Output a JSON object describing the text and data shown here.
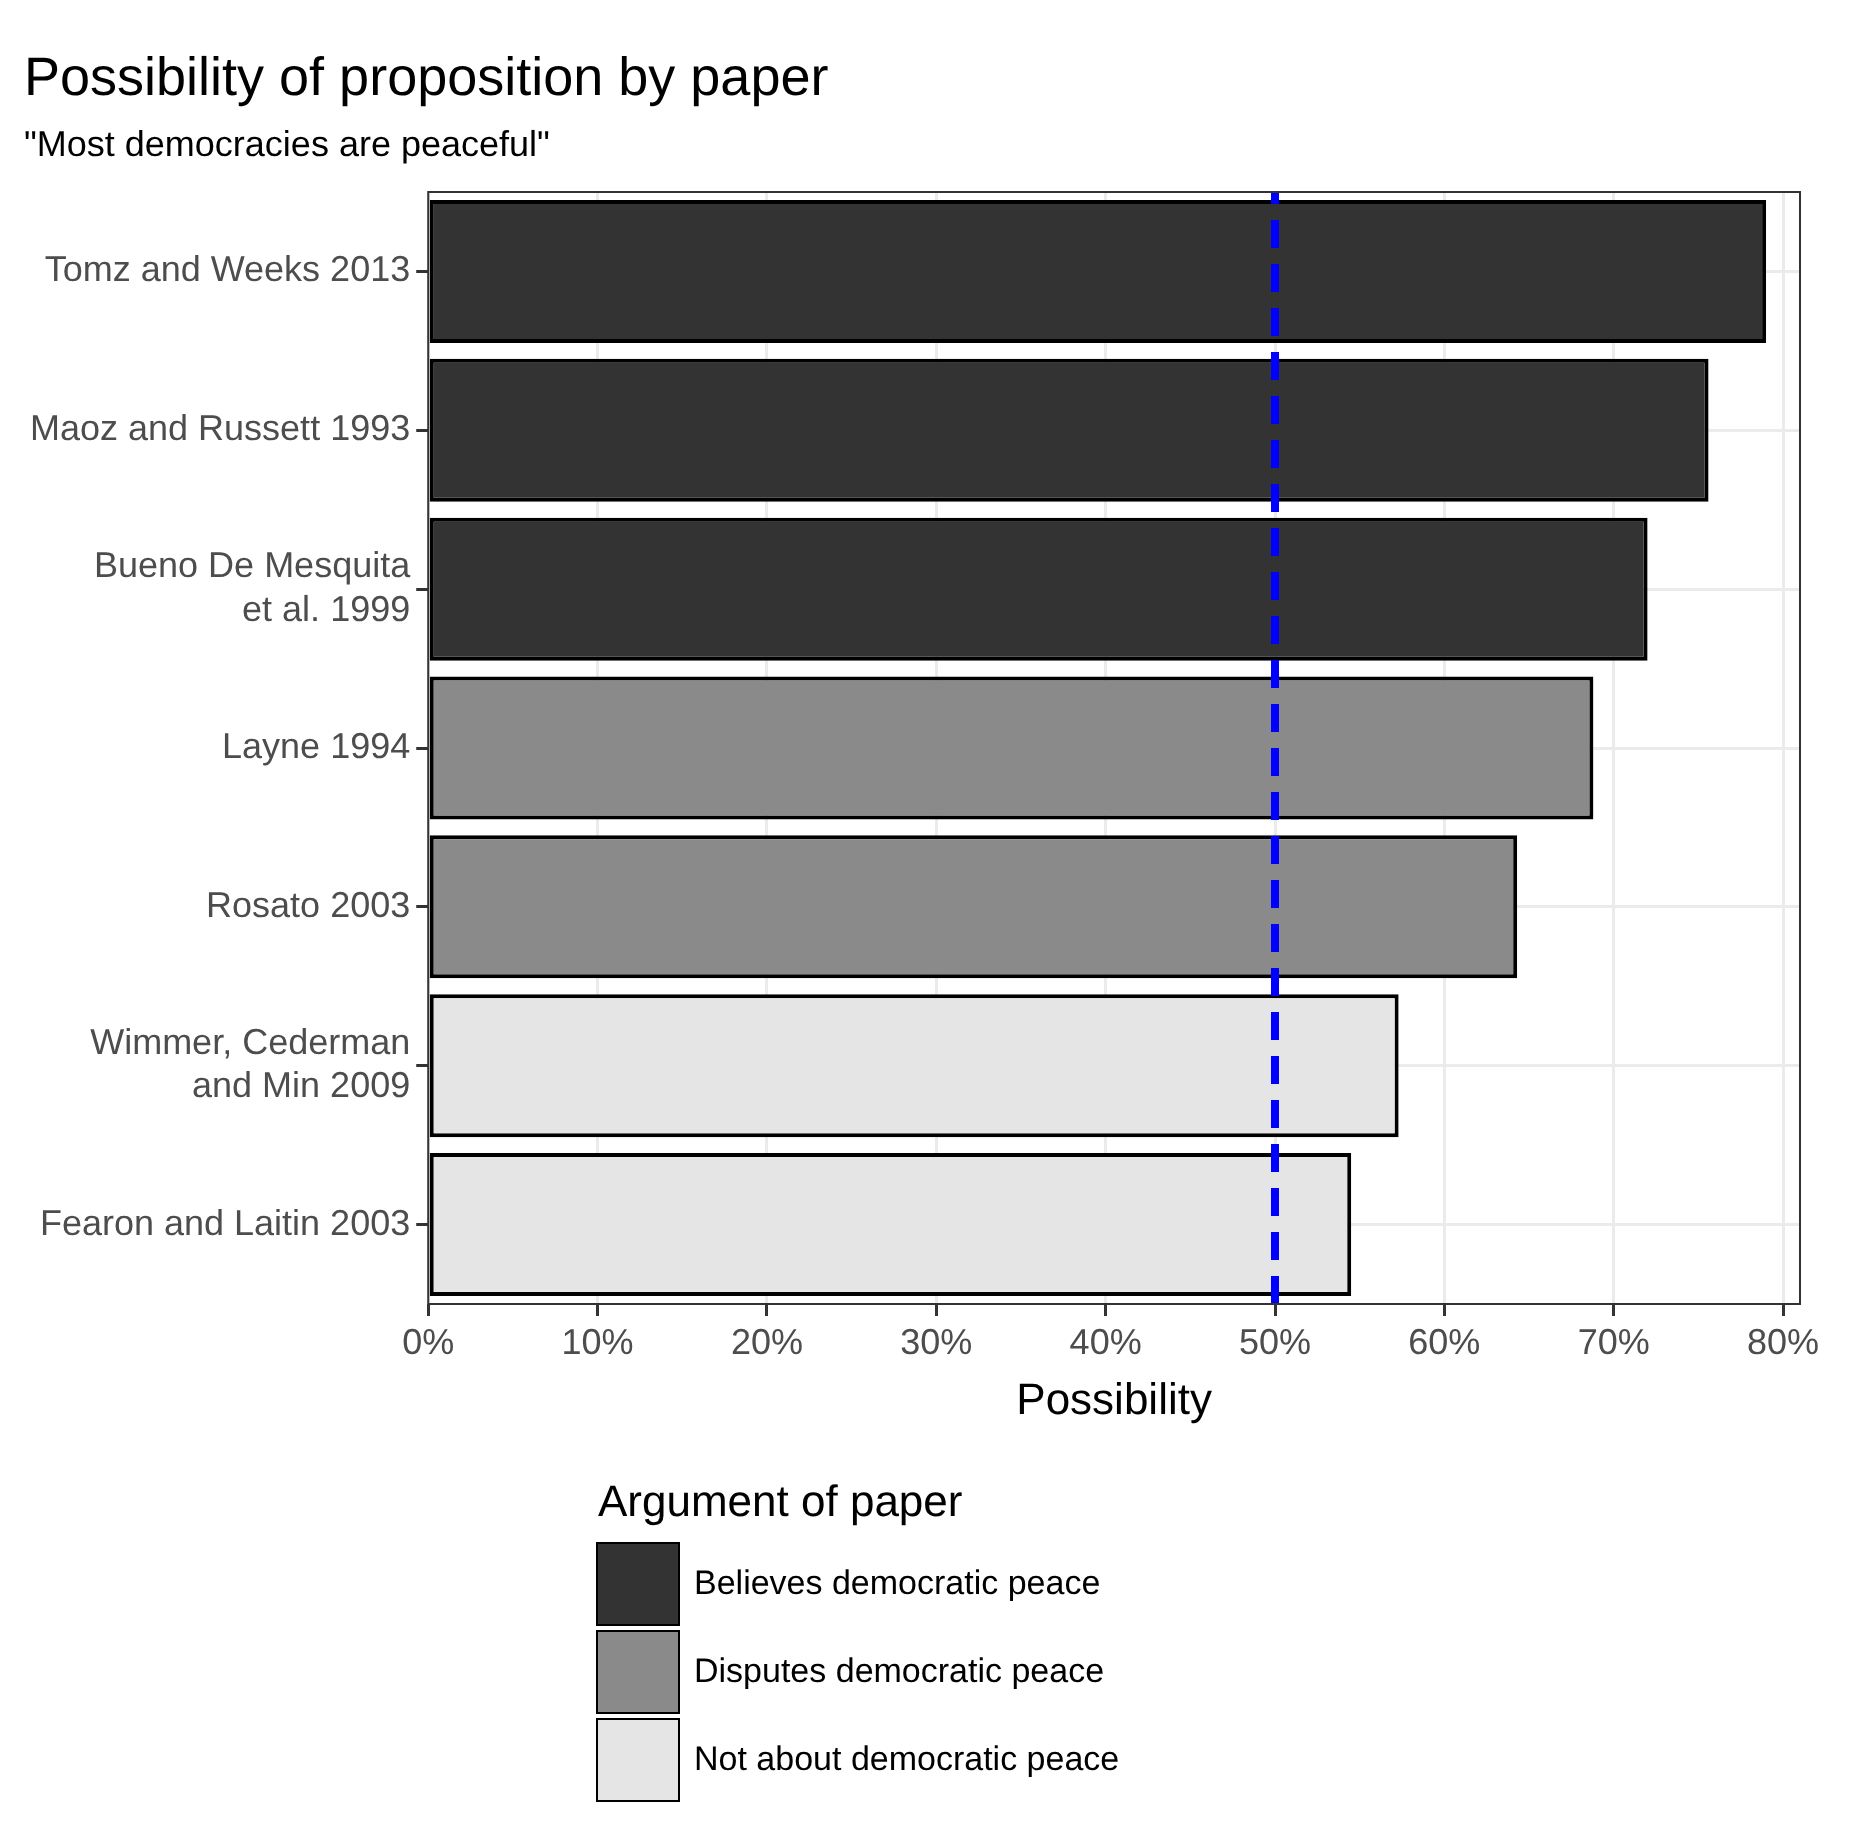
{
  "chart_data": {
    "type": "bar",
    "orientation": "horizontal",
    "stacked": true,
    "title": "Possibility of proposition by paper",
    "subtitle": "\"Most democracies are peaceful\"",
    "xlabel": "Possibility",
    "legend_title": "Argument of paper",
    "legend": "bottom",
    "grid": true,
    "categories": [
      "Tomz and Weeks 2013",
      "Maoz and Russett 1993",
      "Bueno De Mesquita et al. 1999",
      "Layne 1994",
      "Rosato 2003",
      "Wimmer, Cederman and Min 2009",
      "Fearon and Laitin 2003"
    ],
    "series": [
      {
        "name": "Believes democratic peace",
        "color": "#333333",
        "values": [
          79,
          75.6,
          72,
          null,
          null,
          null,
          null
        ]
      },
      {
        "name": "Disputes democratic peace",
        "color": "#8a8a8a",
        "values": [
          null,
          null,
          null,
          68.8,
          64.3,
          null,
          null
        ]
      },
      {
        "name": "Not about democratic peace",
        "color": "#e5e5e5",
        "values": [
          null,
          null,
          null,
          null,
          null,
          57.3,
          54.5
        ]
      }
    ],
    "xlim": [
      0,
      81
    ],
    "xticks": [
      {
        "value": 0,
        "label": "0%"
      },
      {
        "value": 10,
        "label": "10%"
      },
      {
        "value": 20,
        "label": "20%"
      },
      {
        "value": 30,
        "label": "30%"
      },
      {
        "value": 40,
        "label": "40%"
      },
      {
        "value": 50,
        "label": "50%"
      },
      {
        "value": 60,
        "label": "60%"
      },
      {
        "value": 70,
        "label": "70%"
      },
      {
        "value": 80,
        "label": "80%"
      }
    ],
    "ref_lines": [
      {
        "axis": "x",
        "value": 50,
        "color": "#0000ff",
        "line_style": "dashed"
      }
    ]
  }
}
